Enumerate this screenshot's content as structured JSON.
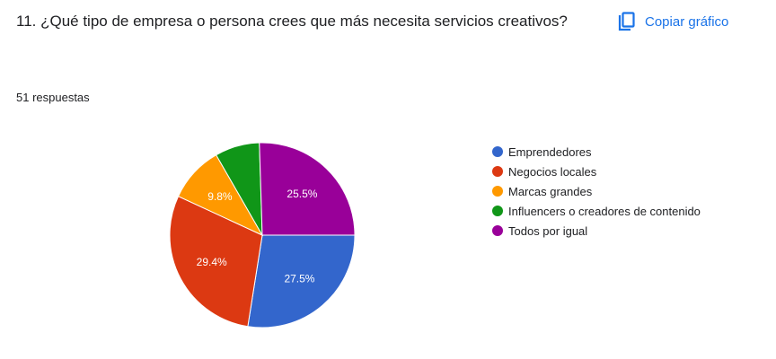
{
  "question": {
    "text": "11. ¿Qué tipo de empresa o persona crees que más necesita servicios creativos?"
  },
  "copy_button": {
    "label": "Copiar gráfico",
    "icon": "copy-icon"
  },
  "responses_text": "51 respuestas",
  "chart_data": {
    "type": "pie",
    "categories": [
      "Emprendedores",
      "Negocios locales",
      "Marcas grandes",
      "Influencers o creadores de contenido",
      "Todos por igual"
    ],
    "values": [
      27.5,
      29.4,
      9.8,
      7.8,
      25.5
    ],
    "slice_labels": [
      "27.5%",
      "29.4%",
      "9.8%",
      "",
      "25.5%"
    ],
    "colors": [
      "#3366cc",
      "#dc3912",
      "#ff9900",
      "#109618",
      "#990099"
    ],
    "legend_position": "right"
  },
  "colors": {
    "accent": "#1a73e8"
  }
}
